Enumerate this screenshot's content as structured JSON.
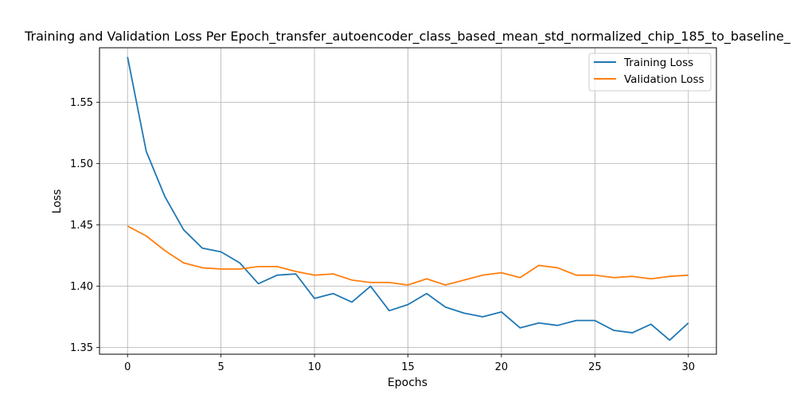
{
  "chart_data": {
    "type": "line",
    "title": "Training and Validation Loss Per Epoch_transfer_autoencoder_class_based_mean_std_normalized_chip_185_to_baseline_",
    "xlabel": "Epochs",
    "ylabel": "Loss",
    "xlim": [
      -1.5,
      31.5
    ],
    "ylim": [
      1.3445,
      1.5945
    ],
    "xticks": [
      0,
      5,
      10,
      15,
      20,
      25,
      30
    ],
    "xtick_labels": [
      "0",
      "5",
      "10",
      "15",
      "20",
      "25",
      "30"
    ],
    "yticks": [
      1.35,
      1.4,
      1.45,
      1.5,
      1.55
    ],
    "ytick_labels": [
      "1.35",
      "1.40",
      "1.45",
      "1.50",
      "1.55"
    ],
    "grid": true,
    "legend_position": "top-right",
    "x": [
      0,
      1,
      2,
      3,
      4,
      5,
      6,
      7,
      8,
      9,
      10,
      11,
      12,
      13,
      14,
      15,
      16,
      17,
      18,
      19,
      20,
      21,
      22,
      23,
      24,
      25,
      26,
      27,
      28,
      29,
      30
    ],
    "series": [
      {
        "name": "Training Loss",
        "color": "#1f77b4",
        "values": [
          1.587,
          1.51,
          1.473,
          1.446,
          1.431,
          1.428,
          1.419,
          1.402,
          1.409,
          1.41,
          1.39,
          1.394,
          1.387,
          1.4,
          1.38,
          1.385,
          1.394,
          1.383,
          1.378,
          1.375,
          1.379,
          1.366,
          1.37,
          1.368,
          1.372,
          1.372,
          1.364,
          1.362,
          1.369,
          1.356,
          1.37
        ]
      },
      {
        "name": "Validation Loss",
        "color": "#ff7f0e",
        "values": [
          1.449,
          1.441,
          1.429,
          1.419,
          1.415,
          1.414,
          1.414,
          1.416,
          1.416,
          1.412,
          1.409,
          1.41,
          1.405,
          1.403,
          1.403,
          1.401,
          1.406,
          1.401,
          1.405,
          1.409,
          1.411,
          1.407,
          1.417,
          1.415,
          1.409,
          1.409,
          1.407,
          1.408,
          1.406,
          1.408,
          1.409
        ]
      }
    ]
  }
}
